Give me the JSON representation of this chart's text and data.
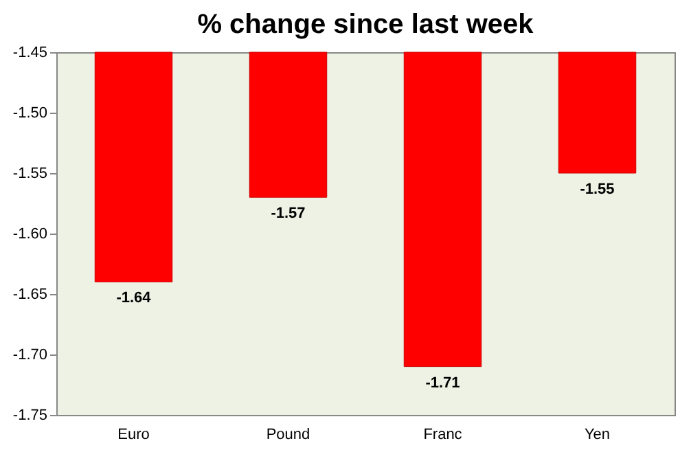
{
  "chart_data": {
    "type": "bar",
    "title": "% change since last week",
    "categories": [
      "Euro",
      "Pound",
      "Franc",
      "Yen"
    ],
    "values": [
      -1.64,
      -1.57,
      -1.71,
      -1.55
    ],
    "color": "#ff0000",
    "ylim": [
      -1.75,
      -1.45
    ],
    "yticks": [
      {
        "value": -1.75,
        "label": "-1.75"
      },
      {
        "value": -1.7,
        "label": "-1.70"
      },
      {
        "value": -1.65,
        "label": "-1.65"
      },
      {
        "value": -1.6,
        "label": "-1.60"
      },
      {
        "value": -1.55,
        "label": "-1.55"
      },
      {
        "value": -1.5,
        "label": "-1.50"
      },
      {
        "value": -1.45,
        "label": "-1.45"
      }
    ],
    "grid": false,
    "data_labels": true
  }
}
